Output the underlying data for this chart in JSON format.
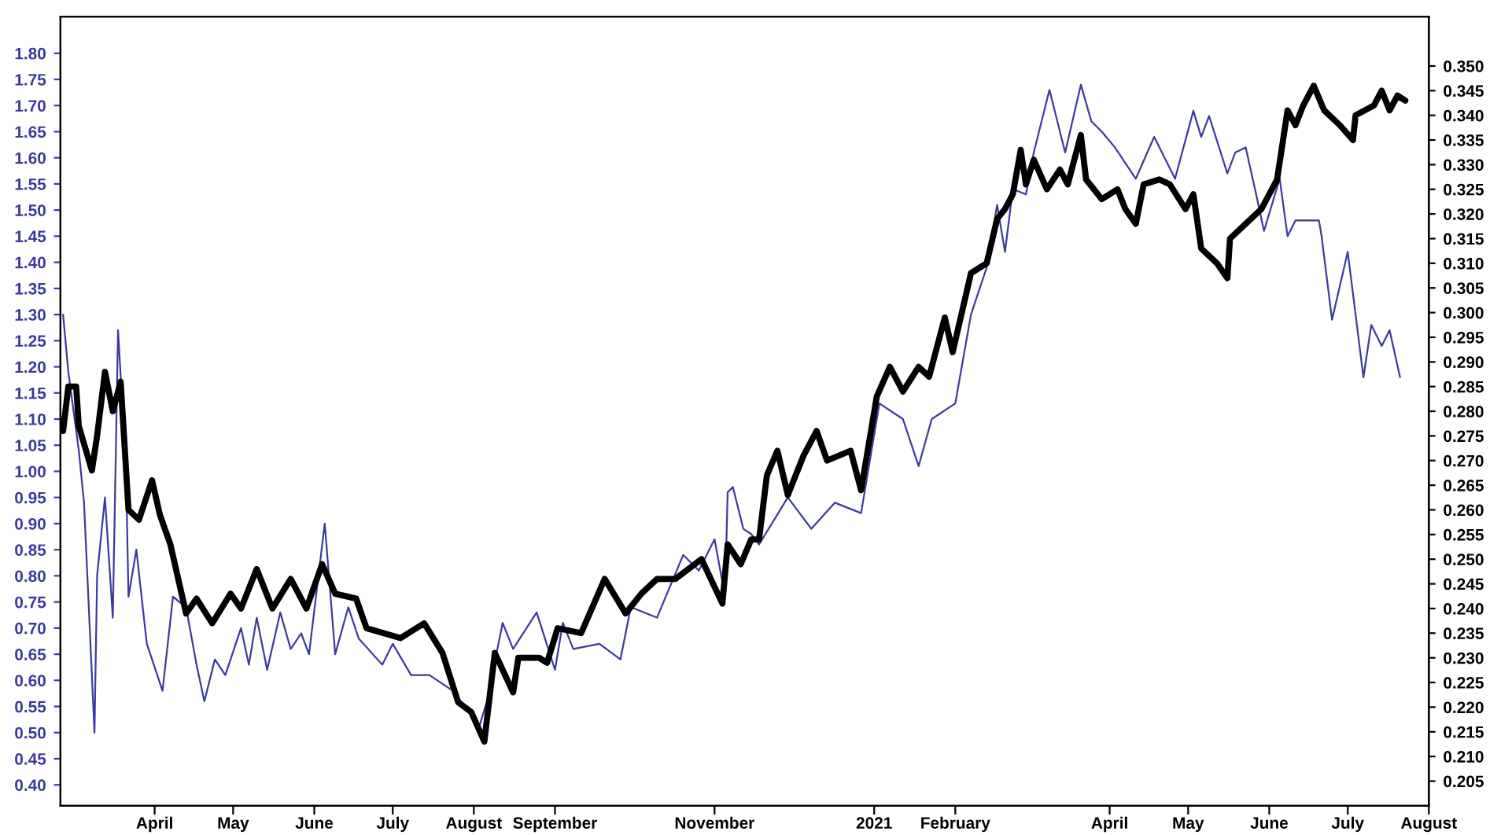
{
  "chart_data": {
    "type": "line",
    "line_style": "solid",
    "marker": "none",
    "grid": false,
    "legend": false,
    "xlim": [
      "2020-02-25",
      "2021-08-01"
    ],
    "xticks": [
      {
        "value": "2020-04-01",
        "label": "April"
      },
      {
        "value": "2020-05-01",
        "label": "May"
      },
      {
        "value": "2020-06-01",
        "label": "June"
      },
      {
        "value": "2020-07-01",
        "label": "July"
      },
      {
        "value": "2020-08-01",
        "label": "August"
      },
      {
        "value": "2020-09-01",
        "label": "September"
      },
      {
        "value": "2020-11-01",
        "label": "November"
      },
      {
        "value": "2021-01-01",
        "label": "2021"
      },
      {
        "value": "2021-02-01",
        "label": "February"
      },
      {
        "value": "2021-04-01",
        "label": "April"
      },
      {
        "value": "2021-05-01",
        "label": "May"
      },
      {
        "value": "2021-06-01",
        "label": "June"
      },
      {
        "value": "2021-07-01",
        "label": "July"
      },
      {
        "value": "2021-08-01",
        "label": "August"
      }
    ],
    "ylim": [
      0.36,
      1.87
    ],
    "yticks": [
      {
        "value": 0.4,
        "label": "0.40"
      },
      {
        "value": 0.45,
        "label": "0.45"
      },
      {
        "value": 0.5,
        "label": "0.50"
      },
      {
        "value": 0.55,
        "label": "0.55"
      },
      {
        "value": 0.6,
        "label": "0.60"
      },
      {
        "value": 0.65,
        "label": "0.65"
      },
      {
        "value": 0.7,
        "label": "0.70"
      },
      {
        "value": 0.75,
        "label": "0.75"
      },
      {
        "value": 0.8,
        "label": "0.80"
      },
      {
        "value": 0.85,
        "label": "0.85"
      },
      {
        "value": 0.9,
        "label": "0.90"
      },
      {
        "value": 0.95,
        "label": "0.95"
      },
      {
        "value": 1.0,
        "label": "1.00"
      },
      {
        "value": 1.05,
        "label": "1.05"
      },
      {
        "value": 1.1,
        "label": "1.10"
      },
      {
        "value": 1.15,
        "label": "1.15"
      },
      {
        "value": 1.2,
        "label": "1.20"
      },
      {
        "value": 1.25,
        "label": "1.25"
      },
      {
        "value": 1.3,
        "label": "1.30"
      },
      {
        "value": 1.35,
        "label": "1.35"
      },
      {
        "value": 1.4,
        "label": "1.40"
      },
      {
        "value": 1.45,
        "label": "1.45"
      },
      {
        "value": 1.5,
        "label": "1.50"
      },
      {
        "value": 1.55,
        "label": "1.55"
      },
      {
        "value": 1.6,
        "label": "1.60"
      },
      {
        "value": 1.65,
        "label": "1.65"
      },
      {
        "value": 1.7,
        "label": "1.70"
      },
      {
        "value": 1.75,
        "label": "1.75"
      },
      {
        "value": 1.8,
        "label": "1.80"
      }
    ],
    "y2lim": [
      0.2,
      0.36
    ],
    "y2ticks": [
      {
        "value": 0.205,
        "label": "0.205"
      },
      {
        "value": 0.21,
        "label": "0.210"
      },
      {
        "value": 0.215,
        "label": "0.215"
      },
      {
        "value": 0.22,
        "label": "0.220"
      },
      {
        "value": 0.225,
        "label": "0.225"
      },
      {
        "value": 0.23,
        "label": "0.230"
      },
      {
        "value": 0.235,
        "label": "0.235"
      },
      {
        "value": 0.24,
        "label": "0.240"
      },
      {
        "value": 0.245,
        "label": "0.245"
      },
      {
        "value": 0.25,
        "label": "0.250"
      },
      {
        "value": 0.255,
        "label": "0.255"
      },
      {
        "value": 0.26,
        "label": "0.260"
      },
      {
        "value": 0.265,
        "label": "0.265"
      },
      {
        "value": 0.27,
        "label": "0.270"
      },
      {
        "value": 0.275,
        "label": "0.275"
      },
      {
        "value": 0.28,
        "label": "0.280"
      },
      {
        "value": 0.285,
        "label": "0.285"
      },
      {
        "value": 0.29,
        "label": "0.290"
      },
      {
        "value": 0.295,
        "label": "0.295"
      },
      {
        "value": 0.3,
        "label": "0.300"
      },
      {
        "value": 0.305,
        "label": "0.305"
      },
      {
        "value": 0.31,
        "label": "0.310"
      },
      {
        "value": 0.315,
        "label": "0.315"
      },
      {
        "value": 0.32,
        "label": "0.320"
      },
      {
        "value": 0.325,
        "label": "0.325"
      },
      {
        "value": 0.33,
        "label": "0.330"
      },
      {
        "value": 0.335,
        "label": "0.335"
      },
      {
        "value": 0.34,
        "label": "0.340"
      },
      {
        "value": 0.345,
        "label": "0.345"
      },
      {
        "value": 0.35,
        "label": "0.350"
      }
    ],
    "series": [
      {
        "color": "#3a3aa0",
        "axis": "y",
        "x": [
          "2020-02-26",
          "2020-02-28",
          "2020-03-03",
          "2020-03-05",
          "2020-03-09",
          "2020-03-10",
          "2020-03-13",
          "2020-03-16",
          "2020-03-18",
          "2020-03-21",
          "2020-03-22",
          "2020-03-25",
          "2020-03-29",
          "2020-04-04",
          "2020-04-08",
          "2020-04-13",
          "2020-04-17",
          "2020-04-20",
          "2020-04-24",
          "2020-04-28",
          "2020-05-04",
          "2020-05-07",
          "2020-05-10",
          "2020-05-14",
          "2020-05-19",
          "2020-05-23",
          "2020-05-27",
          "2020-05-30",
          "2020-06-05",
          "2020-06-09",
          "2020-06-14",
          "2020-06-18",
          "2020-06-27",
          "2020-07-01",
          "2020-07-08",
          "2020-07-15",
          "2020-07-24",
          "2020-07-30",
          "2020-08-03",
          "2020-08-06",
          "2020-08-12",
          "2020-08-16",
          "2020-08-25",
          "2020-09-01",
          "2020-09-04",
          "2020-09-08",
          "2020-09-18",
          "2020-09-26",
          "2020-09-30",
          "2020-10-10",
          "2020-10-20",
          "2020-10-26",
          "2020-11-01",
          "2020-11-05",
          "2020-11-06",
          "2020-11-08",
          "2020-11-12",
          "2020-11-15",
          "2020-11-18",
          "2020-11-29",
          "2020-12-08",
          "2020-12-17",
          "2020-12-27",
          "2021-01-03",
          "2021-01-12",
          "2021-01-18",
          "2021-01-23",
          "2021-02-01",
          "2021-02-07",
          "2021-02-13",
          "2021-02-17",
          "2021-02-20",
          "2021-02-23",
          "2021-02-28",
          "2021-03-03",
          "2021-03-09",
          "2021-03-15",
          "2021-03-21",
          "2021-03-25",
          "2021-03-29",
          "2021-04-03",
          "2021-04-07",
          "2021-04-11",
          "2021-04-18",
          "2021-04-26",
          "2021-05-03",
          "2021-05-06",
          "2021-05-09",
          "2021-05-16",
          "2021-05-19",
          "2021-05-23",
          "2021-05-27",
          "2021-05-30",
          "2021-06-05",
          "2021-06-08",
          "2021-06-11",
          "2021-06-20",
          "2021-06-21",
          "2021-06-25",
          "2021-07-01",
          "2021-07-07",
          "2021-07-10",
          "2021-07-14",
          "2021-07-17",
          "2021-07-21"
        ],
        "values": [
          1.3,
          1.19,
          1.04,
          0.94,
          0.5,
          0.8,
          0.95,
          0.72,
          1.27,
          1.01,
          0.76,
          0.85,
          0.67,
          0.58,
          0.76,
          0.74,
          0.63,
          0.56,
          0.64,
          0.61,
          0.7,
          0.63,
          0.72,
          0.62,
          0.73,
          0.66,
          0.69,
          0.65,
          0.9,
          0.65,
          0.74,
          0.68,
          0.63,
          0.67,
          0.61,
          0.61,
          0.58,
          0.54,
          0.51,
          0.56,
          0.71,
          0.66,
          0.73,
          0.62,
          0.71,
          0.66,
          0.67,
          0.64,
          0.74,
          0.72,
          0.84,
          0.81,
          0.87,
          0.76,
          0.96,
          0.97,
          0.89,
          0.88,
          0.86,
          0.95,
          0.89,
          0.94,
          0.92,
          1.13,
          1.1,
          1.01,
          1.1,
          1.13,
          1.3,
          1.39,
          1.51,
          1.42,
          1.54,
          1.53,
          1.61,
          1.73,
          1.61,
          1.74,
          1.67,
          1.65,
          1.62,
          1.59,
          1.56,
          1.64,
          1.56,
          1.69,
          1.64,
          1.68,
          1.57,
          1.61,
          1.62,
          1.53,
          1.46,
          1.56,
          1.45,
          1.48,
          1.48,
          1.45,
          1.29,
          1.42,
          1.18,
          1.28,
          1.24,
          1.27,
          1.18
        ]
      },
      {
        "color": "#000000",
        "axis": "y2",
        "x": [
          "2020-02-26",
          "2020-02-28",
          "2020-03-02",
          "2020-03-03",
          "2020-03-08",
          "2020-03-10",
          "2020-03-13",
          "2020-03-16",
          "2020-03-19",
          "2020-03-22",
          "2020-03-26",
          "2020-03-31",
          "2020-04-03",
          "2020-04-07",
          "2020-04-13",
          "2020-04-17",
          "2020-04-23",
          "2020-04-30",
          "2020-05-04",
          "2020-05-10",
          "2020-05-16",
          "2020-05-23",
          "2020-05-29",
          "2020-06-04",
          "2020-06-09",
          "2020-06-17",
          "2020-06-21",
          "2020-07-04",
          "2020-07-13",
          "2020-07-20",
          "2020-07-26",
          "2020-07-31",
          "2020-08-05",
          "2020-08-09",
          "2020-08-16",
          "2020-08-18",
          "2020-08-26",
          "2020-08-29",
          "2020-09-02",
          "2020-09-11",
          "2020-09-20",
          "2020-09-28",
          "2020-10-04",
          "2020-10-10",
          "2020-10-17",
          "2020-10-27",
          "2020-11-04",
          "2020-11-06",
          "2020-11-11",
          "2020-11-15",
          "2020-11-18",
          "2020-11-21",
          "2020-11-25",
          "2020-11-29",
          "2020-12-05",
          "2020-12-10",
          "2020-12-14",
          "2020-12-23",
          "2020-12-27",
          "2021-01-02",
          "2021-01-07",
          "2021-01-12",
          "2021-01-18",
          "2021-01-22",
          "2021-01-28",
          "2021-01-31",
          "2021-02-07",
          "2021-02-13",
          "2021-02-17",
          "2021-02-20",
          "2021-02-23",
          "2021-02-26",
          "2021-02-28",
          "2021-03-03",
          "2021-03-08",
          "2021-03-13",
          "2021-03-16",
          "2021-03-21",
          "2021-03-23",
          "2021-03-29",
          "2021-04-04",
          "2021-04-07",
          "2021-04-11",
          "2021-04-14",
          "2021-04-20",
          "2021-04-24",
          "2021-04-30",
          "2021-05-03",
          "2021-05-06",
          "2021-05-12",
          "2021-05-16",
          "2021-05-17",
          "2021-05-23",
          "2021-05-29",
          "2021-06-04",
          "2021-06-08",
          "2021-06-11",
          "2021-06-14",
          "2021-06-18",
          "2021-06-22",
          "2021-06-28",
          "2021-07-03",
          "2021-07-04",
          "2021-07-11",
          "2021-07-14",
          "2021-07-17",
          "2021-07-20",
          "2021-07-23"
        ],
        "values": [
          0.276,
          0.285,
          0.285,
          0.277,
          0.268,
          0.275,
          0.288,
          0.28,
          0.286,
          0.26,
          0.258,
          0.266,
          0.259,
          0.253,
          0.239,
          0.242,
          0.237,
          0.243,
          0.24,
          0.248,
          0.24,
          0.246,
          0.24,
          0.249,
          0.243,
          0.242,
          0.236,
          0.234,
          0.237,
          0.231,
          0.221,
          0.219,
          0.213,
          0.231,
          0.223,
          0.23,
          0.23,
          0.229,
          0.236,
          0.235,
          0.246,
          0.239,
          0.243,
          0.246,
          0.246,
          0.25,
          0.241,
          0.253,
          0.249,
          0.254,
          0.254,
          0.267,
          0.272,
          0.263,
          0.271,
          0.276,
          0.27,
          0.272,
          0.264,
          0.283,
          0.289,
          0.284,
          0.289,
          0.287,
          0.299,
          0.292,
          0.308,
          0.31,
          0.319,
          0.321,
          0.324,
          0.333,
          0.326,
          0.331,
          0.325,
          0.329,
          0.326,
          0.336,
          0.327,
          0.323,
          0.325,
          0.321,
          0.318,
          0.326,
          0.327,
          0.326,
          0.321,
          0.324,
          0.313,
          0.31,
          0.307,
          0.315,
          0.318,
          0.321,
          0.327,
          0.341,
          0.338,
          0.342,
          0.346,
          0.341,
          0.338,
          0.335,
          0.34,
          0.342,
          0.345,
          0.341,
          0.344,
          0.343
        ]
      }
    ]
  }
}
